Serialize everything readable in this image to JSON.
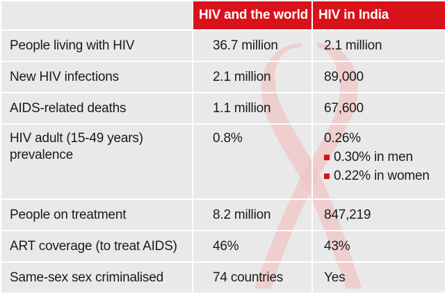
{
  "header": {
    "col_world": "HIV and the world",
    "col_india": "HIV in India"
  },
  "rows": [
    {
      "label": "People living with HIV",
      "world": "36.7 million",
      "india": "2.1 million"
    },
    {
      "label": "New HIV infections",
      "world": "2.1 million",
      "india": "89,000"
    },
    {
      "label": "AIDS-related deaths",
      "world": "1.1 million",
      "india": "67,600"
    },
    {
      "label_line1": "HIV adult (15-49 years)",
      "label_line2": "prevalence",
      "world": "0.8%",
      "india": "0.26%",
      "india_men": "0.30% in men",
      "india_women": "0.22% in women"
    },
    {
      "label": "People on treatment",
      "world": "8.2 million",
      "india": "847,219"
    },
    {
      "label": "ART coverage (to treat AIDS)",
      "world": "46%",
      "india": "43%"
    },
    {
      "label": "Same-sex sex criminalised",
      "world": "74 countries",
      "india": "Yes"
    }
  ],
  "colors": {
    "accent": "#d9111a",
    "background": "#e9e9e9",
    "ribbon": "#f2c9c9"
  }
}
